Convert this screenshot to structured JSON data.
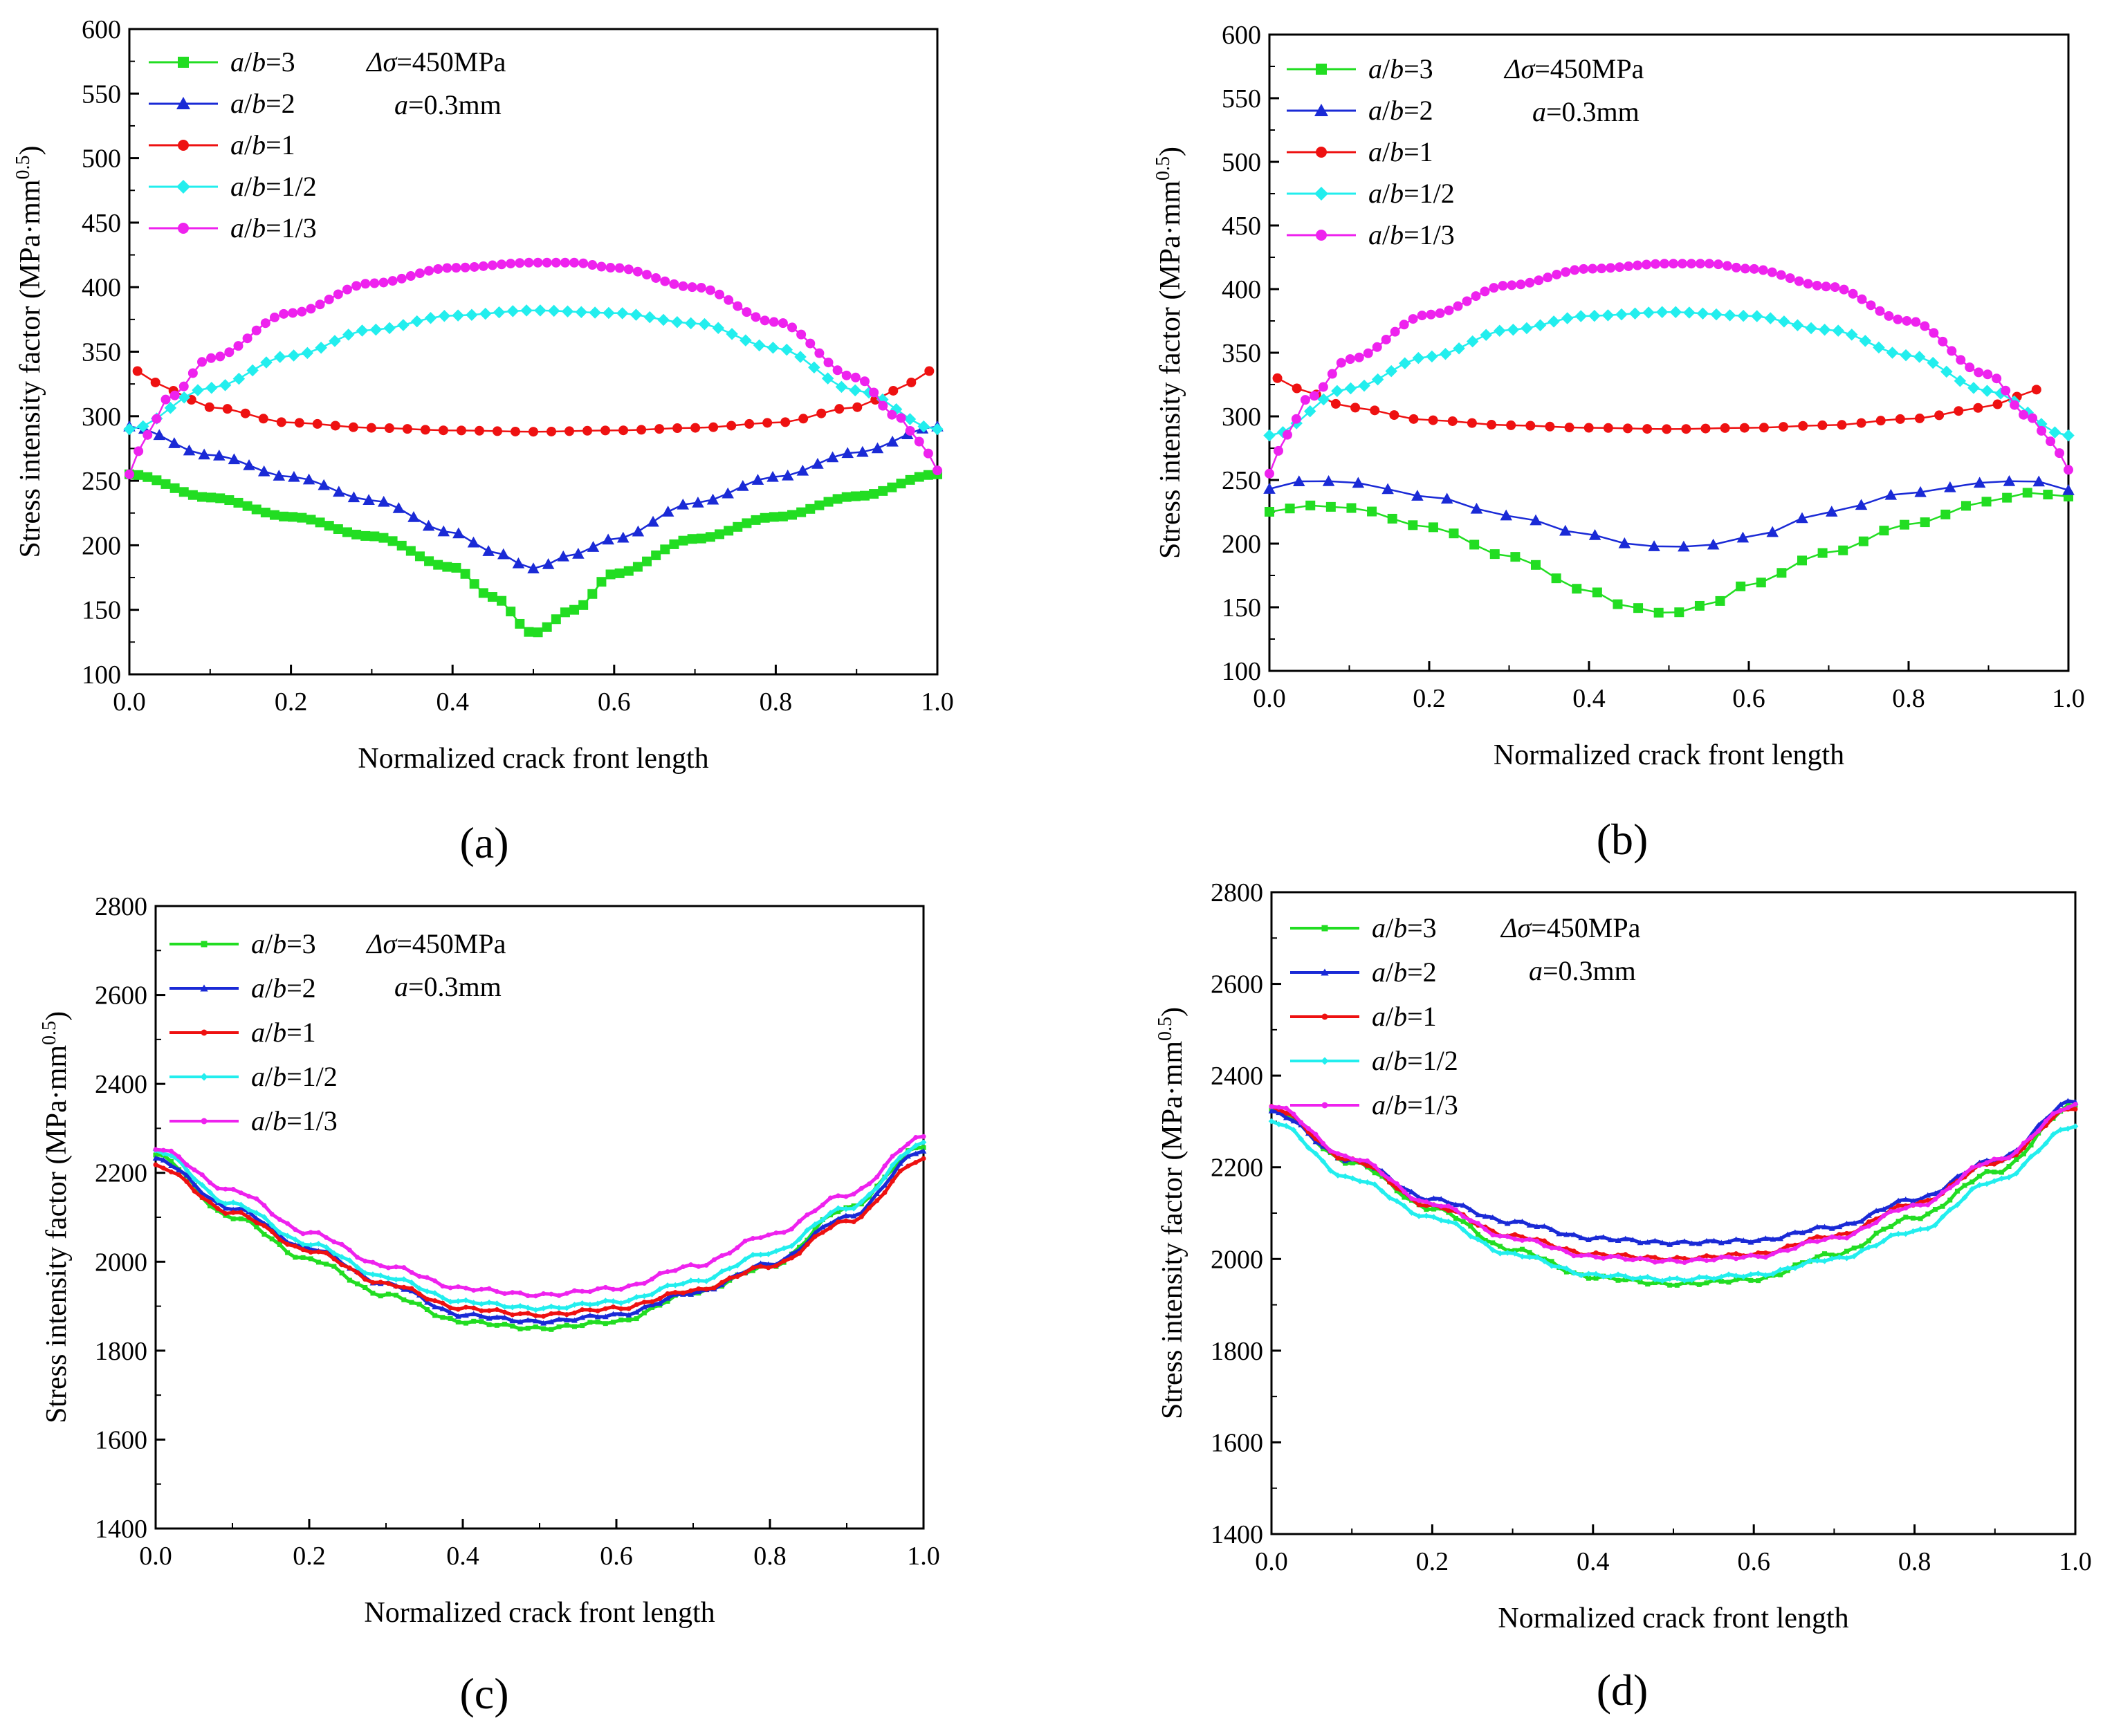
{
  "colors": {
    "green": "#22dd22",
    "blue": "#1a2ad6",
    "red": "#ee1111",
    "cyan": "#22eeee",
    "magenta": "#ee22ee"
  },
  "chart_data": [
    {
      "panel": "a",
      "type": "line",
      "panel_label": "(a)",
      "xlabel": "Normalized crack front length",
      "ylabel": "Stress intensity factor (MPa·mm0.5)",
      "ylabel_main": "Stress intensity factor (MPa·mm",
      "ylabel_sup": "0.5",
      "ylabel_end": ")",
      "xlim": [
        0,
        1
      ],
      "ylim": [
        100,
        600
      ],
      "xticks": [
        "0.0",
        "0.2",
        "0.4",
        "0.6",
        "0.8",
        "1.0"
      ],
      "yticks": [
        "100",
        "150",
        "200",
        "250",
        "300",
        "350",
        "400",
        "450",
        "500",
        "550",
        "600"
      ],
      "annotation_stress": "Δσ=450MPa",
      "annotation_depth": "a=0.3mm",
      "legend_position": "top-left",
      "marker_style": "large",
      "series": [
        {
          "name": "a/b=3",
          "marker": "square",
          "color_key": "green",
          "n": 90,
          "x": [
            0,
            0.1,
            0.2,
            0.3,
            0.4,
            0.45,
            0.5,
            0.55,
            0.6,
            0.7,
            0.8,
            0.9,
            1.0
          ],
          "values": [
            255,
            237,
            222,
            207,
            183,
            160,
            132,
            150,
            178,
            205,
            222,
            238,
            255
          ]
        },
        {
          "name": "a/b=2",
          "marker": "triangle",
          "color_key": "blue",
          "n": 55,
          "x": [
            0,
            0.1,
            0.2,
            0.3,
            0.4,
            0.45,
            0.5,
            0.55,
            0.6,
            0.7,
            0.8,
            0.9,
            1.0
          ],
          "values": [
            292,
            270,
            253,
            235,
            210,
            195,
            182,
            193,
            205,
            233,
            253,
            272,
            292
          ]
        },
        {
          "name": "a/b=1",
          "marker": "circle",
          "color_key": "red",
          "n": 45,
          "x": [
            0.01,
            0.05,
            0.1,
            0.2,
            0.3,
            0.4,
            0.5,
            0.6,
            0.7,
            0.8,
            0.9,
            0.95,
            0.99
          ],
          "values": [
            335,
            320,
            307,
            295,
            291,
            289,
            288,
            289,
            291,
            295,
            307,
            320,
            335
          ]
        },
        {
          "name": "a/b=1/2",
          "marker": "diamond",
          "color_key": "cyan",
          "n": 60,
          "x": [
            0,
            0.1,
            0.2,
            0.3,
            0.4,
            0.5,
            0.6,
            0.7,
            0.8,
            0.9,
            1.0
          ],
          "values": [
            290,
            322,
            347,
            367,
            378,
            382,
            380,
            372,
            353,
            320,
            290
          ]
        },
        {
          "name": "a/b=1/3",
          "marker": "circle",
          "color_key": "magenta",
          "n": 90,
          "x": [
            0,
            0.02,
            0.05,
            0.1,
            0.2,
            0.3,
            0.4,
            0.5,
            0.55,
            0.6,
            0.7,
            0.8,
            0.9,
            0.95,
            0.98,
            1.0
          ],
          "values": [
            255,
            285,
            315,
            345,
            380,
            403,
            415,
            419,
            419,
            415,
            400,
            373,
            330,
            300,
            280,
            258
          ]
        }
      ]
    },
    {
      "panel": "b",
      "type": "line",
      "panel_label": "(b)",
      "xlabel": "Normalized crack front length",
      "ylabel": "Stress intensity factor (MPa·mm0.5)",
      "ylabel_main": "Stress intensity factor (MPa·mm",
      "ylabel_sup": "0.5",
      "ylabel_end": ")",
      "xlim": [
        0,
        1
      ],
      "ylim": [
        100,
        600
      ],
      "xticks": [
        "0.0",
        "0.2",
        "0.4",
        "0.6",
        "0.8",
        "1.0"
      ],
      "yticks": [
        "100",
        "150",
        "200",
        "250",
        "300",
        "350",
        "400",
        "450",
        "500",
        "550",
        "600"
      ],
      "annotation_stress": "Δσ=450MPa",
      "annotation_depth": "a=0.3mm",
      "legend_position": "top-left",
      "marker_style": "large",
      "series": [
        {
          "name": "a/b=3",
          "marker": "square",
          "color_key": "green",
          "n": 40,
          "x": [
            0,
            0.05,
            0.1,
            0.2,
            0.3,
            0.4,
            0.45,
            0.5,
            0.55,
            0.6,
            0.7,
            0.8,
            0.9,
            0.95,
            1.0
          ],
          "values": [
            225,
            230,
            228,
            213,
            190,
            163,
            150,
            145,
            152,
            168,
            193,
            215,
            233,
            240,
            237
          ]
        },
        {
          "name": "a/b=2",
          "marker": "triangle",
          "color_key": "blue",
          "n": 28,
          "x": [
            0,
            0.05,
            0.1,
            0.2,
            0.3,
            0.4,
            0.45,
            0.5,
            0.55,
            0.6,
            0.7,
            0.8,
            0.9,
            0.95,
            1.0
          ],
          "values": [
            243,
            250,
            248,
            237,
            222,
            207,
            200,
            197,
            199,
            205,
            225,
            240,
            248,
            250,
            242
          ]
        },
        {
          "name": "a/b=1",
          "marker": "circle",
          "color_key": "red",
          "n": 40,
          "x": [
            0.01,
            0.05,
            0.1,
            0.2,
            0.3,
            0.4,
            0.5,
            0.6,
            0.7,
            0.8,
            0.9,
            0.93,
            0.96
          ],
          "values": [
            330,
            318,
            307,
            297,
            293,
            291,
            290,
            291,
            293,
            298,
            307,
            315,
            321
          ]
        },
        {
          "name": "a/b=1/2",
          "marker": "diamond",
          "color_key": "cyan",
          "n": 60,
          "x": [
            0,
            0.1,
            0.2,
            0.3,
            0.4,
            0.5,
            0.6,
            0.7,
            0.8,
            0.9,
            1.0
          ],
          "values": [
            285,
            322,
            347,
            368,
            379,
            382,
            379,
            368,
            348,
            320,
            285
          ]
        },
        {
          "name": "a/b=1/3",
          "marker": "circle",
          "color_key": "magenta",
          "n": 90,
          "x": [
            0,
            0.02,
            0.05,
            0.1,
            0.2,
            0.3,
            0.4,
            0.5,
            0.55,
            0.6,
            0.7,
            0.8,
            0.9,
            0.95,
            0.98,
            1.0
          ],
          "values": [
            255,
            285,
            315,
            345,
            380,
            403,
            416,
            420,
            420,
            416,
            402,
            375,
            333,
            300,
            280,
            258
          ]
        }
      ]
    },
    {
      "panel": "c",
      "type": "line",
      "panel_label": "(c)",
      "xlabel": "Normalized crack front length",
      "ylabel": "Stress intensity factor (MPa·mm0.5)",
      "ylabel_main": "Stress intensity factor (MPa·mm",
      "ylabel_sup": "0.5",
      "ylabel_end": ")",
      "xlim": [
        0,
        1
      ],
      "ylim": [
        1400,
        2800
      ],
      "xticks": [
        "0.0",
        "0.2",
        "0.4",
        "0.6",
        "0.8",
        "1.0"
      ],
      "yticks": [
        "1400",
        "1600",
        "1800",
        "2000",
        "2200",
        "2400",
        "2600",
        "2800"
      ],
      "annotation_stress": "Δσ=450MPa",
      "annotation_depth": "a=0.3mm",
      "legend_position": "top-left",
      "marker_style": "small",
      "series": [
        {
          "name": "a/b=3",
          "marker": "square",
          "color_key": "green",
          "n": 100,
          "x": [
            0,
            0.1,
            0.2,
            0.3,
            0.4,
            0.5,
            0.6,
            0.7,
            0.8,
            0.9,
            1.0
          ],
          "values": [
            2240,
            2100,
            2005,
            1925,
            1865,
            1850,
            1865,
            1930,
            1990,
            2120,
            2260
          ]
        },
        {
          "name": "a/b=2",
          "marker": "triangle",
          "color_key": "blue",
          "n": 100,
          "x": [
            0,
            0.1,
            0.2,
            0.3,
            0.4,
            0.5,
            0.6,
            0.7,
            0.8,
            0.9,
            1.0
          ],
          "values": [
            2230,
            2120,
            2030,
            1950,
            1880,
            1865,
            1880,
            1930,
            1995,
            2100,
            2250
          ]
        },
        {
          "name": "a/b=1",
          "marker": "circle",
          "color_key": "red",
          "n": 100,
          "x": [
            0,
            0.1,
            0.2,
            0.3,
            0.4,
            0.5,
            0.6,
            0.7,
            0.8,
            0.9,
            1.0
          ],
          "values": [
            2215,
            2110,
            2025,
            1950,
            1895,
            1880,
            1895,
            1935,
            1990,
            2090,
            2230
          ]
        },
        {
          "name": "a/b=1/2",
          "marker": "diamond",
          "color_key": "cyan",
          "n": 100,
          "x": [
            0,
            0.1,
            0.2,
            0.3,
            0.4,
            0.5,
            0.6,
            0.7,
            0.8,
            0.9,
            1.0
          ],
          "values": [
            2250,
            2130,
            2040,
            1965,
            1910,
            1895,
            1910,
            1955,
            2020,
            2120,
            2265
          ]
        },
        {
          "name": "a/b=1/3",
          "marker": "circle",
          "color_key": "magenta",
          "n": 100,
          "x": [
            0,
            0.1,
            0.2,
            0.3,
            0.4,
            0.5,
            0.6,
            0.7,
            0.8,
            0.9,
            1.0
          ],
          "values": [
            2255,
            2160,
            2065,
            1990,
            1940,
            1925,
            1940,
            1990,
            2060,
            2150,
            2280
          ]
        }
      ]
    },
    {
      "panel": "d",
      "type": "line",
      "panel_label": "(d)",
      "xlabel": "Normalized crack front length",
      "ylabel": "Stress intensity factor (MPa·mm0.5)",
      "ylabel_main": "Stress intensity factor (MPa·mm",
      "ylabel_sup": "0.5",
      "ylabel_end": ")",
      "xlim": [
        0,
        1
      ],
      "ylim": [
        1400,
        2800
      ],
      "xticks": [
        "0.0",
        "0.2",
        "0.4",
        "0.6",
        "0.8",
        "1.0"
      ],
      "yticks": [
        "1400",
        "1600",
        "1800",
        "2000",
        "2200",
        "2400",
        "2600",
        "2800"
      ],
      "annotation_stress": "Δσ=450MPa",
      "annotation_depth": "a=0.3mm",
      "legend_position": "top-left",
      "marker_style": "small",
      "series": [
        {
          "name": "a/b=3",
          "marker": "square",
          "color_key": "green",
          "n": 110,
          "x": [
            0,
            0.1,
            0.2,
            0.3,
            0.4,
            0.5,
            0.6,
            0.7,
            0.8,
            0.9,
            1.0
          ],
          "values": [
            2325,
            2210,
            2110,
            2020,
            1960,
            1945,
            1955,
            2010,
            2090,
            2190,
            2335
          ]
        },
        {
          "name": "a/b=2",
          "marker": "triangle",
          "color_key": "blue",
          "n": 110,
          "x": [
            0,
            0.1,
            0.2,
            0.3,
            0.4,
            0.5,
            0.6,
            0.7,
            0.8,
            0.9,
            1.0
          ],
          "values": [
            2320,
            2215,
            2130,
            2080,
            2045,
            2035,
            2040,
            2070,
            2130,
            2215,
            2345
          ]
        },
        {
          "name": "a/b=1",
          "marker": "circle",
          "color_key": "red",
          "n": 110,
          "x": [
            0,
            0.1,
            0.2,
            0.3,
            0.4,
            0.5,
            0.6,
            0.7,
            0.8,
            0.9,
            1.0
          ],
          "values": [
            2330,
            2215,
            2115,
            2050,
            2010,
            2000,
            2010,
            2050,
            2120,
            2210,
            2330
          ]
        },
        {
          "name": "a/b=1/2",
          "marker": "diamond",
          "color_key": "cyan",
          "n": 110,
          "x": [
            0,
            0.1,
            0.2,
            0.3,
            0.4,
            0.5,
            0.6,
            0.7,
            0.8,
            0.9,
            1.0
          ],
          "values": [
            2300,
            2175,
            2090,
            2010,
            1965,
            1955,
            1965,
            2000,
            2060,
            2170,
            2290
          ]
        },
        {
          "name": "a/b=1/3",
          "marker": "circle",
          "color_key": "magenta",
          "n": 110,
          "x": [
            0,
            0.1,
            0.2,
            0.3,
            0.4,
            0.5,
            0.6,
            0.7,
            0.8,
            0.9,
            1.0
          ],
          "values": [
            2335,
            2220,
            2120,
            2045,
            2005,
            1995,
            2005,
            2045,
            2115,
            2215,
            2335
          ]
        }
      ]
    }
  ]
}
